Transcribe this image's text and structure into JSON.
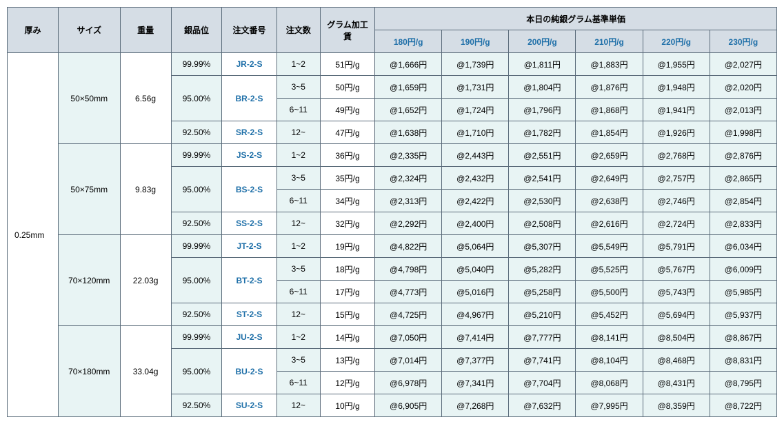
{
  "headers": {
    "thickness": "厚み",
    "size": "サイズ",
    "weight": "重量",
    "purity": "銀品位",
    "order_no": "注文番号",
    "qty": "注文数",
    "fee": "グラム加工賃",
    "price_group": "本日の純銀グラム基準単価",
    "price_cols": [
      "180円/g",
      "190円/g",
      "200円/g",
      "210円/g",
      "220円/g",
      "230円/g"
    ]
  },
  "thickness": "0.25mm",
  "sizes": [
    {
      "size": "50×50mm",
      "weight": "6.56g",
      "purities": [
        "99.99%",
        "95.00%",
        "92.50%"
      ],
      "orders": [
        "JR-2-S",
        "BR-2-S",
        "SR-2-S"
      ],
      "qtys": [
        "1~2",
        "3~5",
        "6~11",
        "12~"
      ],
      "fees": [
        "51円/g",
        "50円/g",
        "49円/g",
        "47円/g"
      ],
      "prices": [
        [
          "@1,666円",
          "@1,739円",
          "@1,811円",
          "@1,883円",
          "@1,955円",
          "@2,027円"
        ],
        [
          "@1,659円",
          "@1,731円",
          "@1,804円",
          "@1,876円",
          "@1,948円",
          "@2,020円"
        ],
        [
          "@1,652円",
          "@1,724円",
          "@1,796円",
          "@1,868円",
          "@1,941円",
          "@2,013円"
        ],
        [
          "@1,638円",
          "@1,710円",
          "@1,782円",
          "@1,854円",
          "@1,926円",
          "@1,998円"
        ]
      ]
    },
    {
      "size": "50×75mm",
      "weight": "9.83g",
      "purities": [
        "99.99%",
        "95.00%",
        "92.50%"
      ],
      "orders": [
        "JS-2-S",
        "BS-2-S",
        "SS-2-S"
      ],
      "qtys": [
        "1~2",
        "3~5",
        "6~11",
        "12~"
      ],
      "fees": [
        "36円/g",
        "35円/g",
        "34円/g",
        "32円/g"
      ],
      "prices": [
        [
          "@2,335円",
          "@2,443円",
          "@2,551円",
          "@2,659円",
          "@2,768円",
          "@2,876円"
        ],
        [
          "@2,324円",
          "@2,432円",
          "@2,541円",
          "@2,649円",
          "@2,757円",
          "@2,865円"
        ],
        [
          "@2,313円",
          "@2,422円",
          "@2,530円",
          "@2,638円",
          "@2,746円",
          "@2,854円"
        ],
        [
          "@2,292円",
          "@2,400円",
          "@2,508円",
          "@2,616円",
          "@2,724円",
          "@2,833円"
        ]
      ]
    },
    {
      "size": "70×120mm",
      "weight": "22.03g",
      "purities": [
        "99.99%",
        "95.00%",
        "92.50%"
      ],
      "orders": [
        "JT-2-S",
        "BT-2-S",
        "ST-2-S"
      ],
      "qtys": [
        "1~2",
        "3~5",
        "6~11",
        "12~"
      ],
      "fees": [
        "19円/g",
        "18円/g",
        "17円/g",
        "15円/g"
      ],
      "prices": [
        [
          "@4,822円",
          "@5,064円",
          "@5,307円",
          "@5,549円",
          "@5,791円",
          "@6,034円"
        ],
        [
          "@4,798円",
          "@5,040円",
          "@5,282円",
          "@5,525円",
          "@5,767円",
          "@6,009円"
        ],
        [
          "@4,773円",
          "@5,016円",
          "@5,258円",
          "@5,500円",
          "@5,743円",
          "@5,985円"
        ],
        [
          "@4,725円",
          "@4,967円",
          "@5,210円",
          "@5,452円",
          "@5,694円",
          "@5,937円"
        ]
      ]
    },
    {
      "size": "70×180mm",
      "weight": "33.04g",
      "purities": [
        "99.99%",
        "95.00%",
        "92.50%"
      ],
      "orders": [
        "JU-2-S",
        "BU-2-S",
        "SU-2-S"
      ],
      "qtys": [
        "1~2",
        "3~5",
        "6~11",
        "12~"
      ],
      "fees": [
        "14円/g",
        "13円/g",
        "12円/g",
        "10円/g"
      ],
      "prices": [
        [
          "@7,050円",
          "@7,414円",
          "@7,777円",
          "@8,141円",
          "@8,504円",
          "@8,867円"
        ],
        [
          "@7,014円",
          "@7,377円",
          "@7,741円",
          "@8,104円",
          "@8,468円",
          "@8,831円"
        ],
        [
          "@6,978円",
          "@7,341円",
          "@7,704円",
          "@8,068円",
          "@8,431円",
          "@8,795円"
        ],
        [
          "@6,905円",
          "@7,268円",
          "@7,632円",
          "@7,995円",
          "@8,359円",
          "@8,722円"
        ]
      ]
    }
  ],
  "style": {
    "header_bg": "#d5dde5",
    "tint_bg": "#e8f4f4",
    "plain_bg": "#ffffff",
    "border_color": "#5a6b7a",
    "link_color": "#1e6fa8",
    "font_size": 12
  }
}
